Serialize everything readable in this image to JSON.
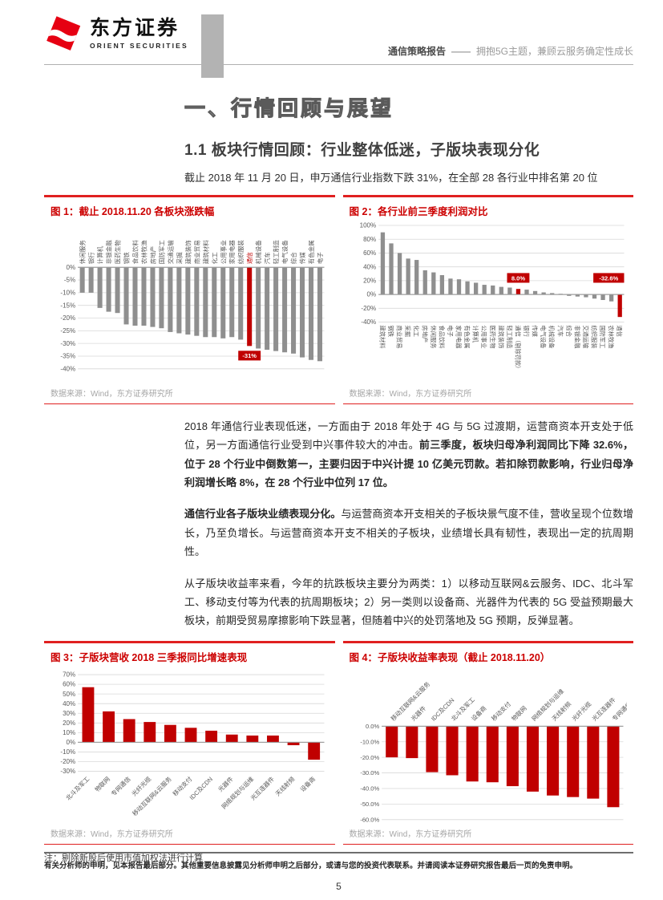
{
  "header": {
    "logo_cn": "东方证券",
    "logo_en": "ORIENT SECURITIES",
    "report_type": "通信策略报告",
    "separator": "——",
    "report_title": "拥抱5G主题，兼顾云服务确定性成长"
  },
  "section": {
    "h1": "一、行情回顾与展望",
    "h2": "1.1 板块行情回顾：行业整体低迷，子版块表现分化",
    "intro": "截止 2018 年 11 月 20 日，申万通信行业指数下跌 31%，在全部 28 各行业中排名第 20 位"
  },
  "paragraphs": {
    "p1_normal": "2018 年通信行业表现低迷，一方面由于 2018 年处于 4G 与 5G 过渡期，运营商资本开支处于低位，另一方面通信行业受到中兴事件较大的冲击。",
    "p1_bold": "前三季度，板块归母净利润同比下降 32.6%，位于 28 个行业中倒数第一，主要归因于中兴计提 10 亿美元罚款。若扣除罚款影响，行业归母净利润增长略 8%，在 28 个行业中位列 17 位。",
    "p2_bold": "通信行业各子版块业绩表现分化。",
    "p2_normal": "与运营商资本开支相关的子板块景气度不佳，营收呈现个位数增长，乃至负增长。与运营商资本开支不相关的子板块，业绩增长具有韧性，表现出一定的抗周期性。",
    "p3_normal": "从子版块收益率来看，今年的抗跌板块主要分为两类：1）以移动互联网&云服务、IDC、北斗军工、移动支付等为代表的抗周期板块；2）另一类则以设备商、光器件为代表的 5G 受益预期最大板块，前期受贸易摩擦影响下跌显著，但随着中兴的处罚落地及 5G 预期，反弹显著。"
  },
  "figures": [
    {
      "id": "fig1",
      "label": "图 1：",
      "title": "截止 2018.11.20 各板块涨跌幅",
      "source": "数据来源：Wind，东方证券研究所"
    },
    {
      "id": "fig2",
      "label": "图 2：",
      "title": "各行业前三季度利润对比",
      "source": "数据来源：Wind，东方证券研究所"
    },
    {
      "id": "fig3",
      "label": "图 3：",
      "title": "子版块营收 2018 三季报同比增速表现",
      "source": "数据来源：Wind，东方证券研究所"
    },
    {
      "id": "fig4",
      "label": "图 4：",
      "title": "子版块收益率表现（截止 2018.11.20）",
      "source": "数据来源：Wind，东方证券研究所",
      "note": "注：剔除新股后使用市值加权法进行计算"
    }
  ],
  "colors": {
    "accent_red": "#cc0000",
    "figure_rule_red": "#e02020",
    "bar_gray": "#8f8f8f",
    "bar_red": "#c00000",
    "logo_red": "#e60012"
  },
  "chart_data": [
    {
      "id": "fig1",
      "type": "bar",
      "title": "截止 2018.11.20 各板块涨跌幅",
      "categories": [
        "休闲服务",
        "银行",
        "计算机",
        "非银金融",
        "医药生物",
        "钢铁",
        "食品饮料",
        "农林牧渔",
        "房地产",
        "国防军工",
        "交通运输",
        "采掘",
        "建筑装饰",
        "商业贸易",
        "建筑材料",
        "化工",
        "公用事业",
        "家用电器",
        "纺织服装",
        "通信",
        "机械设备",
        "汽车",
        "轻工制造",
        "电气设备",
        "综合",
        "传媒",
        "有色金属",
        "电子"
      ],
      "values": [
        -10,
        -10,
        -16,
        -17.5,
        -18,
        -22.5,
        -23,
        -23,
        -23.5,
        -24,
        -25.5,
        -26,
        -26.5,
        -27,
        -27.5,
        -27.5,
        -28,
        -27.5,
        -28.5,
        -31,
        -32,
        -32.5,
        -33,
        -33.5,
        -34,
        -35.5,
        -36.5,
        -37
      ],
      "ylim": [
        -40,
        0
      ],
      "tick_values": [
        0,
        -5,
        -10,
        -15,
        -20,
        -25,
        -30,
        -35,
        -40
      ],
      "tick_labels": [
        "0%",
        "-5%",
        "-10%",
        "-15%",
        "-20%",
        "-25%",
        "-30%",
        "-35%",
        "-40%"
      ],
      "bar_color": "#8f8f8f",
      "highlights": [
        {
          "index": 19,
          "color": "#c00000",
          "label": "-31%",
          "label_v": -34.8,
          "cat_red": true
        }
      ]
    },
    {
      "id": "fig2",
      "type": "bar",
      "title": "各行业前三季度利润对比",
      "categories": [
        "建筑材料",
        "钢铁",
        "商业贸易",
        "采掘",
        "化工",
        "房地产",
        "休闲服务",
        "食品饮料",
        "电子",
        "家用电器",
        "有色金属",
        "计算机",
        "公用事业",
        "医药生物",
        "建筑装饰",
        "轻工制造",
        "通信（剔除罚款）",
        "银行",
        "传媒",
        "电气设备",
        "机械设备",
        "汽车",
        "综合",
        "非银金融",
        "交通运输",
        "纺织服装",
        "国防军工",
        "农林牧渔",
        "通信"
      ],
      "values": [
        90,
        74,
        60,
        52,
        50,
        35,
        32,
        28,
        23,
        22,
        19,
        17,
        14,
        13,
        11,
        10,
        8,
        7,
        5,
        3,
        2,
        1,
        -2,
        -3,
        -4,
        -6,
        -8,
        -10,
        -32.6
      ],
      "ylim": [
        -40,
        100
      ],
      "tick_values": [
        100,
        80,
        60,
        40,
        20,
        0,
        -20,
        -40
      ],
      "tick_labels": [
        "100%",
        "80%",
        "60%",
        "40%",
        "20%",
        "0%",
        "-20%",
        "-40%"
      ],
      "bar_color": "#8f8f8f",
      "highlights": [
        {
          "index": 16,
          "color": "#c00000",
          "label": "8.0%",
          "label_v": 24
        },
        {
          "index": 28,
          "color": "#c00000",
          "label": "-32.6%",
          "label_v": 24
        }
      ]
    },
    {
      "id": "fig3",
      "type": "bar",
      "title": "子版块营收 2018 三季报同比增速表现",
      "categories": [
        "北斗及军工",
        "物联网",
        "专网通信",
        "光纤光缆",
        "移动互联网&云服务",
        "移动支付",
        "IDC及CDN",
        "光器件",
        "网络规划与运维",
        "光互连器件",
        "天线射频",
        "设备商"
      ],
      "values": [
        57,
        32,
        24,
        21,
        18,
        15,
        12,
        8,
        7,
        7,
        -3,
        -18
      ],
      "ylim": [
        -30,
        70
      ],
      "tick_values": [
        70,
        60,
        50,
        40,
        30,
        20,
        10,
        0,
        -10,
        -20,
        -30
      ],
      "tick_labels": [
        "70%",
        "60%",
        "50%",
        "40%",
        "30%",
        "20%",
        "10%",
        "0%",
        "-10%",
        "-20%",
        "-30%"
      ],
      "bar_color": "#c00000",
      "highlights": []
    },
    {
      "id": "fig4",
      "type": "bar",
      "title": "子版块收益率表现（截止 2018.11.20）",
      "categories": [
        "移动互联网&云服务",
        "光器件",
        "IDC及CDN",
        "北斗及军工",
        "设备商",
        "移动支付",
        "物联网",
        "网络规划与运维",
        "天线射频",
        "光纤光缆",
        "光互连器件",
        "专网通信"
      ],
      "values": [
        -20,
        -20.5,
        -29.5,
        -31.5,
        -35.5,
        -36,
        -38.5,
        -42,
        -44.5,
        -45.5,
        -46.5,
        -52
      ],
      "ylim": [
        -60,
        0
      ],
      "tick_values": [
        0,
        -10,
        -20,
        -30,
        -40,
        -50,
        -60
      ],
      "tick_labels": [
        "0.0%",
        "-10.0%",
        "-20.0%",
        "-30.0%",
        "-40.0%",
        "-50.0%",
        "-60.0%"
      ],
      "bar_color": "#c00000",
      "highlights": []
    }
  ],
  "footer": {
    "disclaimer": "有关分析师的申明，见本报告最后部分。其他重要信息披露见分析师申明之后部分，或请与您的投资代表联系。并请阅读本证券研究报告最后一页的免责申明。",
    "page": "5"
  }
}
